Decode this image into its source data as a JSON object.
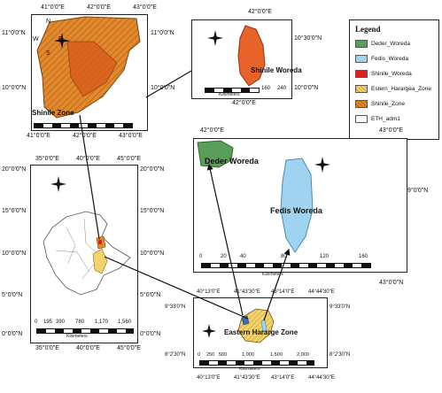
{
  "shinile_zone_panel": {
    "top_ticks": [
      "41°0'0\"E",
      "42°0'0\"E",
      "43°0'0\"E"
    ],
    "bottom_ticks": [
      "41°0'0\"E",
      "42°0'0\"E",
      "43°0'0\"E"
    ],
    "left_ticks": [
      "11°0'0\"N",
      "10°0'0\"N"
    ],
    "right_ticks": [
      "11°0'0\"N",
      "10°0'0\"N"
    ],
    "label": "Shinile Zone"
  },
  "shinile_woreda_panel": {
    "top_tick": "42°0'0\"E",
    "bottom_tick": "42°0'0\"E",
    "right_ticks": [
      "10°30'0\"N",
      "10°0'0\"N"
    ],
    "label": "Shinile Woreda",
    "scale_labels": [
      "160",
      "240"
    ],
    "scale_unit": "Kilometers"
  },
  "legend": {
    "title": "Legend",
    "items": [
      {
        "label": "Deder_Woreda",
        "color": "#5a9e5a"
      },
      {
        "label": "Fedis_Woreda",
        "color": "#9fd3f0"
      },
      {
        "label": "Shinile_Woreda",
        "color": "#e02020"
      },
      {
        "label": "Estern_Harargea_Zone",
        "color": "#f3d36b"
      },
      {
        "label": "Shinile_Zone",
        "color": "#e0892d"
      },
      {
        "label": "ETH_adm1",
        "color": "#ffffff"
      }
    ]
  },
  "ethiopia_panel": {
    "top_ticks": [
      "35°0'0\"E",
      "40°0'0\"E",
      "45°0'0\"E"
    ],
    "bottom_ticks": [
      "35°0'0\"E",
      "40°0'0\"E",
      "45°0'0\"E"
    ],
    "left_ticks": [
      "20°0'0\"N",
      "15°0'0\"N",
      "10°0'0\"N",
      "5°0'0\"N",
      "0°0'0\"N"
    ],
    "right_ticks": [
      "20°0'0\"N",
      "15°0'0\"N",
      "10°0'0\"N",
      "5°0'0\"N",
      "0°0'0\"N"
    ],
    "scale_labels": [
      "0",
      "195",
      "390",
      "780",
      "1,170",
      "1,560"
    ],
    "scale_unit": "Kilometers"
  },
  "deder_fedis_panel": {
    "top_ticks": [
      "42°0'0\"E",
      "43°0'0\"E"
    ],
    "bottom_tick": "43°0'0\"N",
    "right_tick": "9°0'0\"N",
    "deder_label": "Deder Woreda",
    "fedis_label": "Fedis Woreda",
    "scale_labels": [
      "0",
      "20",
      "40",
      "80",
      "120",
      "160"
    ],
    "scale_unit": "Kilometers"
  },
  "east_hararge_panel": {
    "top_ticks": [
      "40°13'0\"E",
      "41°43'30\"E",
      "43°14'0\"E",
      "44°44'30\"E"
    ],
    "bottom_ticks": [
      "40°13'0\"E",
      "41°43'30\"E",
      "43°14'0\"E",
      "44°44'30\"E"
    ],
    "left_ticks": [
      "9°33'0\"N",
      "8°2'30\"N"
    ],
    "right_ticks": [
      "9°33'0\"N",
      "8°2'30\"N"
    ],
    "label": "Eastern Hararge Zone",
    "scale_labels": [
      "0",
      "250",
      "500",
      "1,000",
      "1,500",
      "2,000"
    ],
    "scale_unit": "Kilometers"
  },
  "north_arrow": {
    "n": "N",
    "s": "S",
    "e": "E",
    "w": "W"
  }
}
